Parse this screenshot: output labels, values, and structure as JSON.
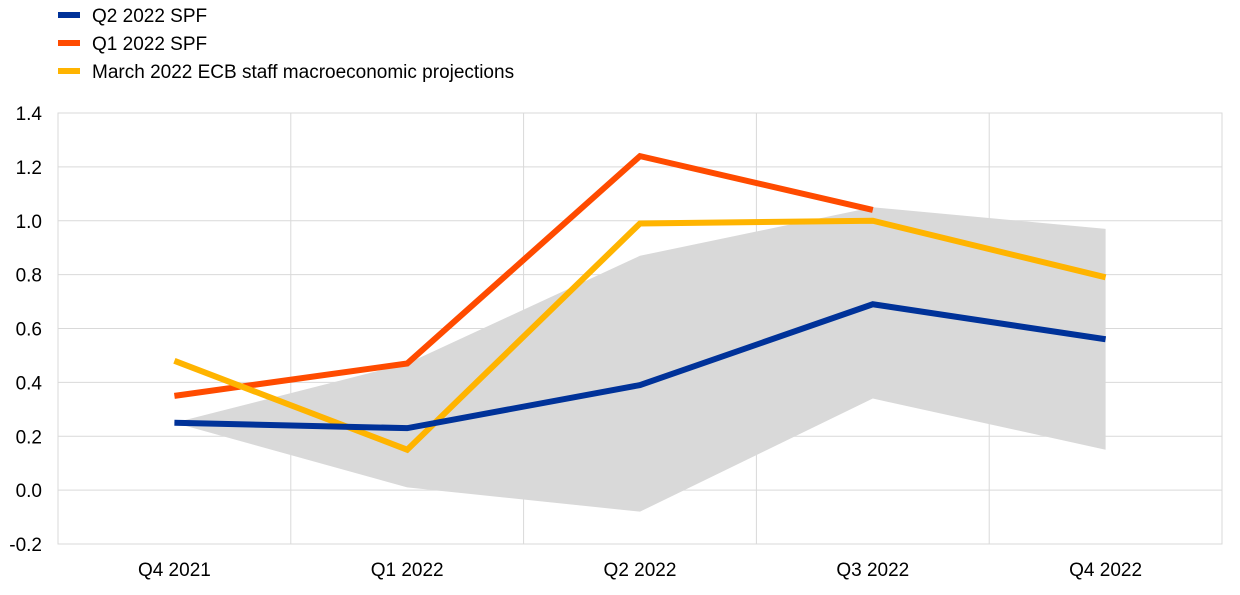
{
  "chart_data": {
    "type": "line",
    "title": "",
    "xlabel": "",
    "ylabel": "",
    "categories": [
      "Q4 2021",
      "Q1 2022",
      "Q2 2022",
      "Q3 2022",
      "Q4 2022"
    ],
    "ylim": [
      -0.2,
      1.4
    ],
    "yticks": [
      -0.2,
      0.0,
      0.2,
      0.4,
      0.6,
      0.8,
      1.0,
      1.2,
      1.4
    ],
    "ytick_labels": [
      "-0.2",
      "0.0",
      "0.2",
      "0.4",
      "0.6",
      "0.8",
      "1.0",
      "1.2",
      "1.4"
    ],
    "grid": true,
    "legend_position": "top-left",
    "band": {
      "upper": [
        0.25,
        0.47,
        0.87,
        1.05,
        0.97
      ],
      "lower": [
        0.25,
        0.01,
        -0.08,
        0.34,
        0.15
      ],
      "color": "#d9d9d9"
    },
    "series": [
      {
        "name": "Q2 2022 SPF",
        "color": "#003299",
        "values": [
          0.25,
          0.23,
          0.39,
          0.69,
          0.56
        ]
      },
      {
        "name": "Q1 2022 SPF",
        "color": "#ff4b00",
        "values": [
          0.35,
          0.47,
          1.24,
          1.04,
          null
        ]
      },
      {
        "name": "March 2022 ECB staff macroeconomic projections",
        "color": "#ffb400",
        "values": [
          0.48,
          0.15,
          0.99,
          1.0,
          0.79
        ]
      }
    ]
  }
}
